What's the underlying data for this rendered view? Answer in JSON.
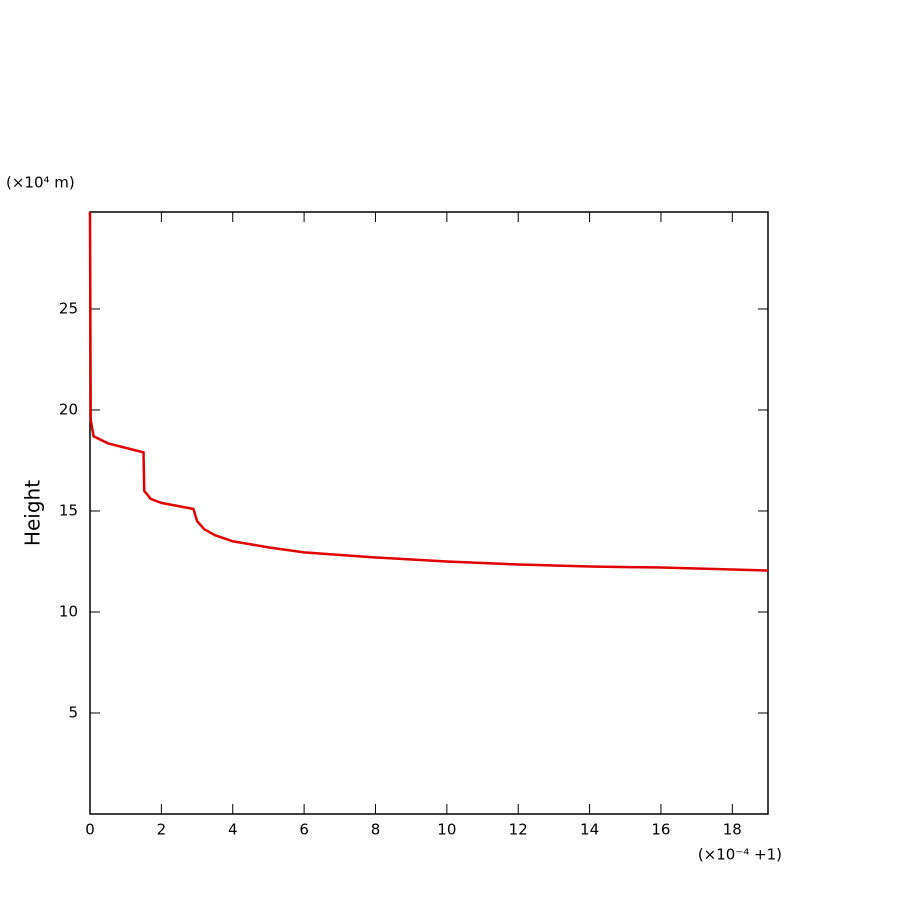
{
  "chart_data": {
    "type": "line",
    "y_unit_label": "(×10⁴ m)",
    "y_label": "Height",
    "x_unit_label": "(×10⁻⁴ +1)",
    "x": [
      0,
      0.02,
      0.1,
      0.5,
      1.5,
      1.52,
      1.7,
      2.0,
      2.9,
      3.0,
      3.2,
      3.5,
      4,
      5,
      6,
      8,
      10,
      12,
      14,
      16,
      19
    ],
    "series": [
      {
        "color": "#e00000",
        "values": [
          29.8,
          19.5,
          18.7,
          18.35,
          17.9,
          16.0,
          15.6,
          15.4,
          15.1,
          14.5,
          14.1,
          13.8,
          13.5,
          13.2,
          12.95,
          12.7,
          12.5,
          12.35,
          12.25,
          12.2,
          12.05
        ]
      }
    ],
    "xlim": [
      0,
      19
    ],
    "ylim": [
      0,
      29.8
    ],
    "xticks": [
      0,
      2,
      4,
      6,
      8,
      10,
      12,
      14,
      16,
      18
    ],
    "yticks": [
      5,
      10,
      15,
      20,
      25
    ]
  }
}
